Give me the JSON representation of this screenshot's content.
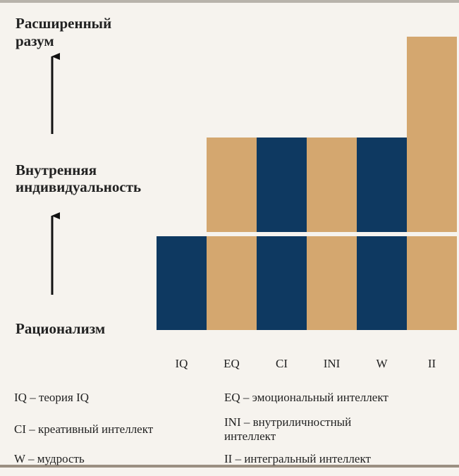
{
  "levels": [
    "Рационализм",
    "Внутренняя индивидуальность",
    "Расширенный разум"
  ],
  "level_lines": [
    [
      "Рационализм"
    ],
    [
      "Внутренняя",
      "индивидуальность"
    ],
    [
      "Расширенный",
      "разум"
    ]
  ],
  "columns": [
    {
      "label": "IQ",
      "color": "#0e3961",
      "levels": 1
    },
    {
      "label": "EQ",
      "color": "#d4a76f",
      "levels": 2
    },
    {
      "label": "CI",
      "color": "#0e3961",
      "levels": 2
    },
    {
      "label": "INI",
      "color": "#d4a76f",
      "levels": 2
    },
    {
      "label": "W",
      "color": "#0e3961",
      "levels": 2
    },
    {
      "label": "II",
      "color": "#d4a76f",
      "levels": 3
    }
  ],
  "legend": [
    [
      "IQ – теория IQ"
    ],
    [
      "EQ – эмоциональный интеллект"
    ],
    [
      "CI – креативный интеллект"
    ],
    [
      "INI – внутриличностный",
      "интеллект"
    ],
    [
      "W – мудрость"
    ],
    [
      "II – интегральный интеллект"
    ]
  ]
}
